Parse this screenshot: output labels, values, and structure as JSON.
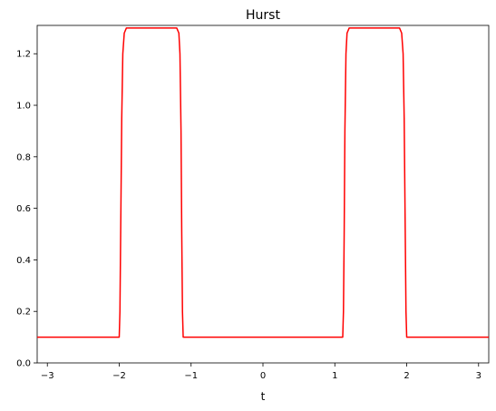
{
  "chart_data": {
    "type": "line",
    "title": "Hurst",
    "xlabel": "t",
    "ylabel": "",
    "xlim": [
      -3.14159,
      3.14159
    ],
    "ylim": [
      0.0,
      1.31
    ],
    "xticks": [
      -3,
      -2,
      -1,
      0,
      1,
      2,
      3
    ],
    "xtick_labels": [
      "−3",
      "−2",
      "−1",
      "0",
      "1",
      "2",
      "3"
    ],
    "yticks": [
      0.0,
      0.2,
      0.4,
      0.6,
      0.8,
      1.0,
      1.2
    ],
    "ytick_labels": [
      "0.0",
      "0.2",
      "0.4",
      "0.6",
      "0.8",
      "1.0",
      "1.2"
    ],
    "grid": false,
    "series": [
      {
        "color": "#ff0000",
        "x": [
          -3.1416,
          -2.0,
          -1.99,
          -1.98,
          -1.965,
          -1.95,
          -1.93,
          -1.9,
          -1.2,
          -1.17,
          -1.155,
          -1.14,
          -1.13,
          -1.12,
          -1.11,
          1.11,
          1.12,
          1.13,
          1.14,
          1.155,
          1.17,
          1.2,
          1.9,
          1.93,
          1.95,
          1.965,
          1.98,
          1.99,
          2.0,
          3.1416
        ],
        "y": [
          0.1,
          0.1,
          0.2,
          0.5,
          0.95,
          1.2,
          1.28,
          1.3,
          1.3,
          1.28,
          1.2,
          0.9,
          0.5,
          0.2,
          0.1,
          0.1,
          0.2,
          0.5,
          0.9,
          1.2,
          1.28,
          1.3,
          1.3,
          1.28,
          1.2,
          0.95,
          0.5,
          0.2,
          0.1,
          0.1
        ]
      }
    ]
  }
}
